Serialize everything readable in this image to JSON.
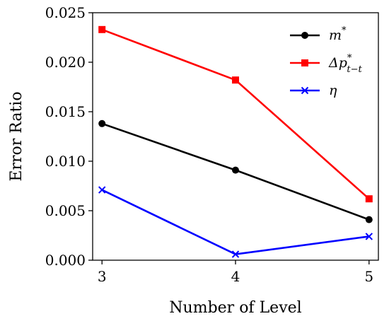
{
  "chart_data": {
    "type": "line",
    "title": "",
    "xlabel": "Number of Level",
    "ylabel": "Error Ratio",
    "x": [
      3,
      4,
      5
    ],
    "xlim": [
      2.93,
      5.07
    ],
    "ylim": [
      0,
      0.025
    ],
    "xticks": [
      3,
      4,
      5
    ],
    "xtick_labels": [
      "3",
      "4",
      "5"
    ],
    "yticks": [
      0,
      0.005,
      0.01,
      0.015,
      0.02,
      0.025
    ],
    "ytick_labels": [
      "0.000",
      "0.005",
      "0.010",
      "0.015",
      "0.020",
      "0.025"
    ],
    "grid": false,
    "legend_position": "top-right",
    "series": [
      {
        "name": "m*",
        "legend_base": "m",
        "legend_sup": "*",
        "legend_sub": "",
        "color": "#000000",
        "marker": "circle",
        "values": [
          0.0138,
          0.0091,
          0.0041
        ]
      },
      {
        "name": "Δp*t−t",
        "legend_base": "Δp",
        "legend_sup": "*",
        "legend_sub": "t−t",
        "color": "#ff0000",
        "marker": "square",
        "values": [
          0.0233,
          0.0182,
          0.0062
        ]
      },
      {
        "name": "η",
        "legend_base": "η",
        "legend_sup": "",
        "legend_sub": "",
        "color": "#0000ff",
        "marker": "x",
        "values": [
          0.0071,
          0.0006,
          0.0024
        ]
      }
    ]
  }
}
